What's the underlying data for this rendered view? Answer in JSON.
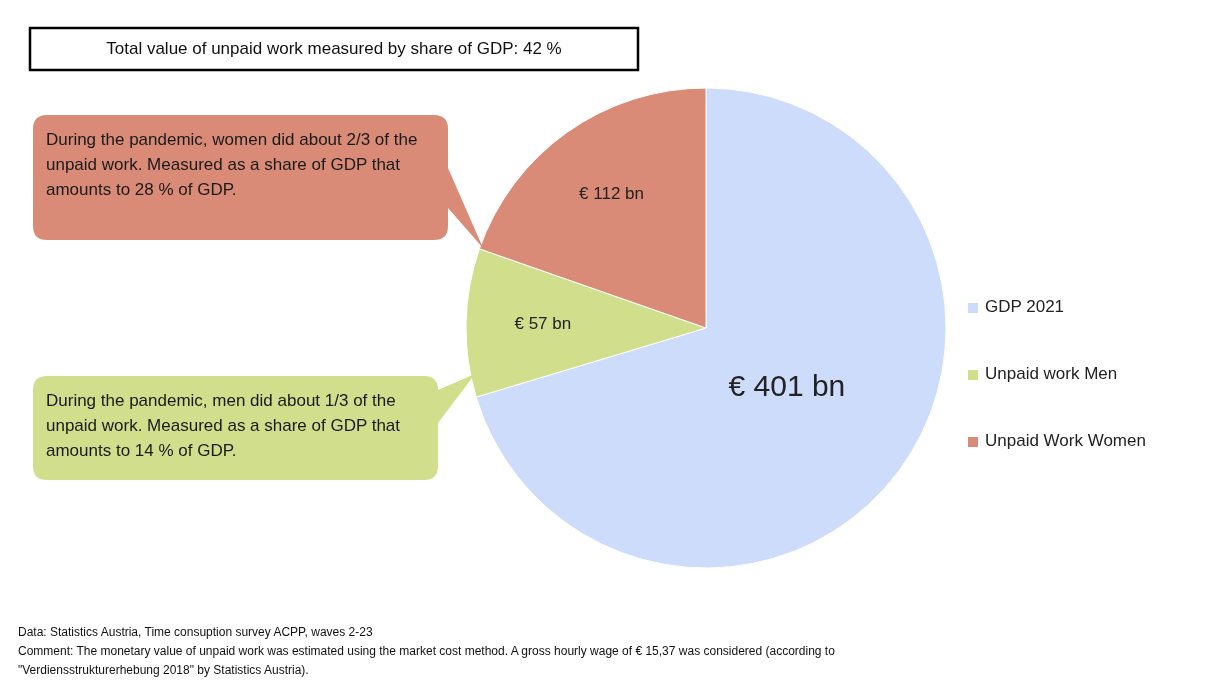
{
  "chart_data": {
    "type": "pie",
    "title": "Total value of unpaid work measured by share of GDP: 42 %",
    "categories": [
      "GDP 2021",
      "Unpaid work Men",
      "Unpaid Work Women"
    ],
    "values": [
      401,
      57,
      112
    ],
    "value_labels": [
      "€ 401 bn",
      "€ 57 bn",
      "€ 112 bn"
    ],
    "colors": [
      "#cddcfa",
      "#d1de8c",
      "#d98b77"
    ],
    "legend": "right",
    "annotations": [
      "During the pandemic, women did about 2/3 of the unpaid work. Measured as a share of GDP that amounts to 28 % of GDP.",
      "During the pandemic, men did about 1/3 of the unpaid work. Measured as a share of GDP that amounts to 14 % of GDP.",
      "Data: Statistics Austria, Time consuption survey ACPP, waves 2-23",
      "Comment: The monetary value of unpaid work was estimated using the market cost method. A gross hourly wage of € 15,37 was considered (according to \"Verdiensstrukturerhebung 2018\" by Statistics Austria)."
    ]
  }
}
